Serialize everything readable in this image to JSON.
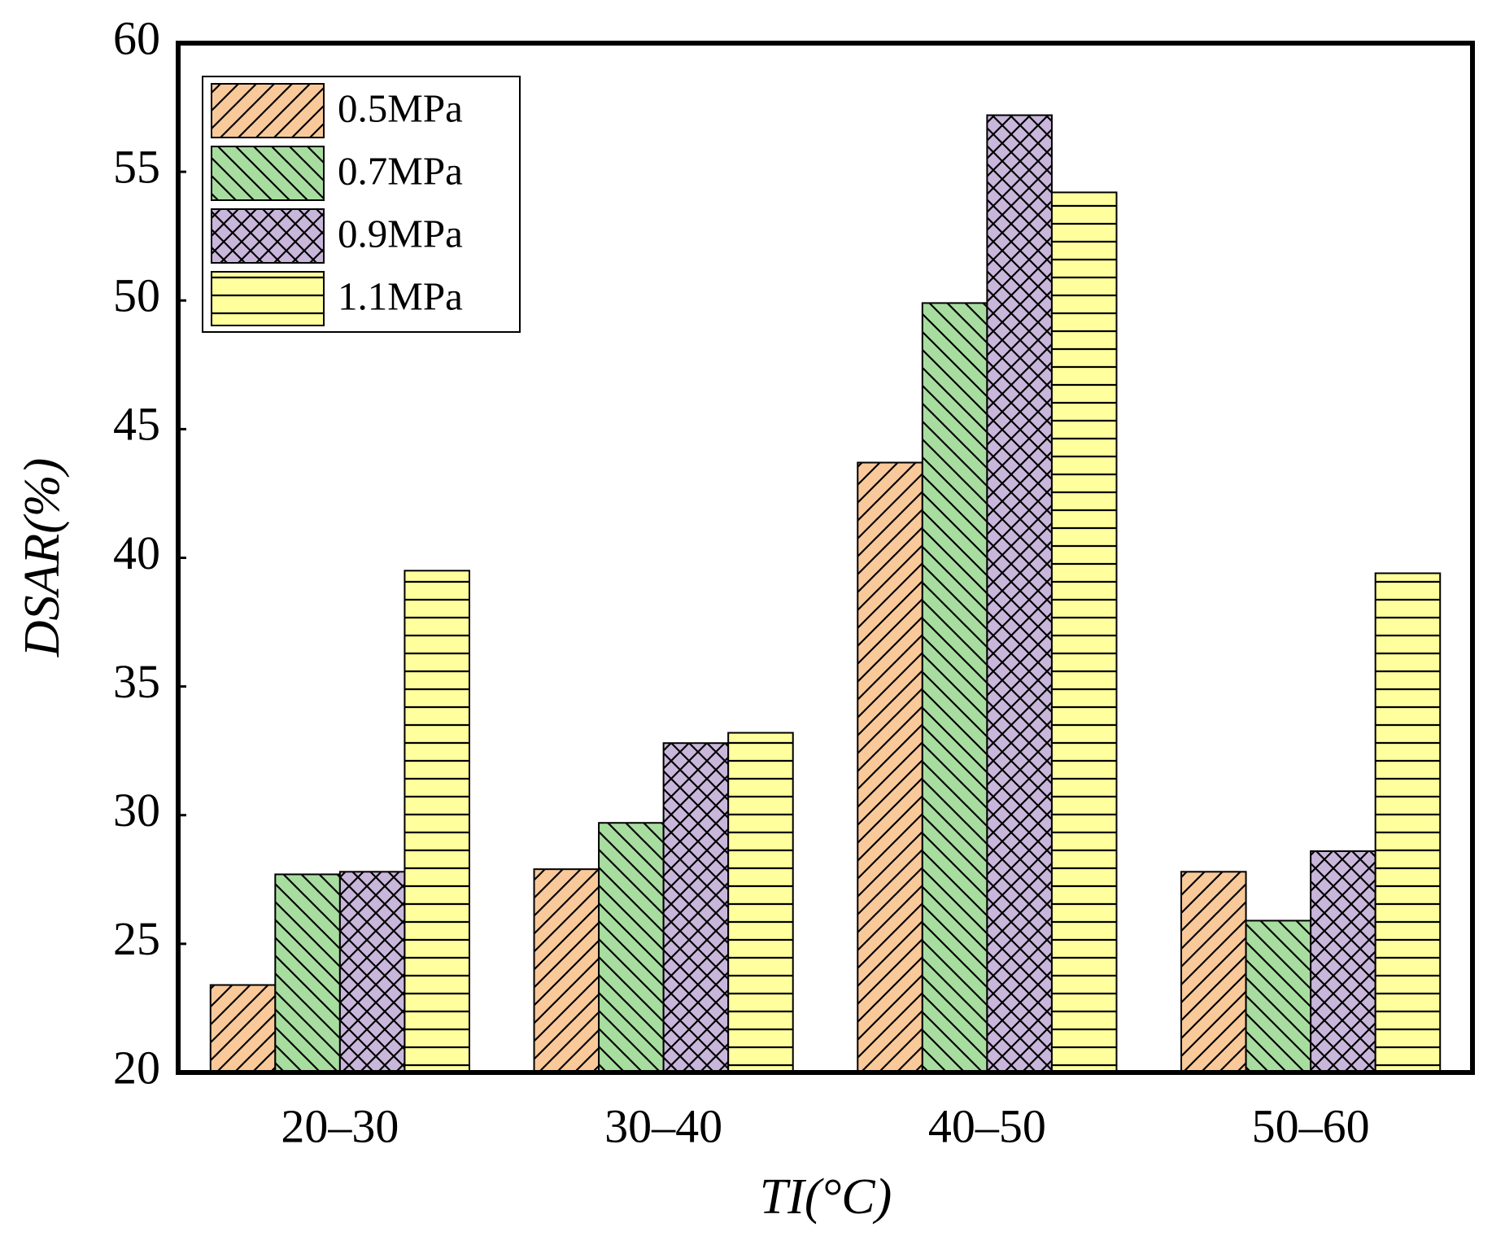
{
  "chart_data": {
    "type": "bar",
    "x_label": "TI(°C)",
    "y_label": "DSAR(%)",
    "categories": [
      "20–30",
      "30–40",
      "40–50",
      "50–60"
    ],
    "series": [
      {
        "name": "0.5MPa",
        "color": "#f9c99a",
        "hatch": "/",
        "values": [
          23.4,
          27.9,
          43.7,
          27.8
        ]
      },
      {
        "name": "0.7MPa",
        "color": "#a8dda0",
        "hatch": "\\",
        "values": [
          27.7,
          29.7,
          49.9,
          25.9
        ]
      },
      {
        "name": "0.9MPa",
        "color": "#c9b6db",
        "hatch": "x",
        "values": [
          27.8,
          32.8,
          57.2,
          28.6
        ]
      },
      {
        "name": "1.1MPa",
        "color": "#ffff9e",
        "hatch": "-",
        "values": [
          39.5,
          33.2,
          54.2,
          39.4
        ]
      }
    ],
    "ylim": [
      20,
      60
    ],
    "yticks": [
      20,
      25,
      30,
      35,
      40,
      45,
      50,
      55,
      60
    ],
    "legend": "upper left"
  }
}
